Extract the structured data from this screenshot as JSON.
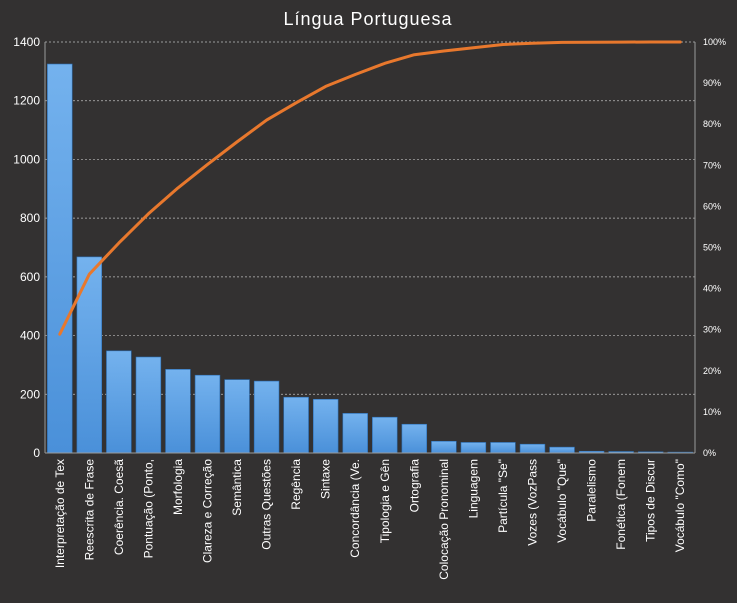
{
  "chart_data": {
    "type": "bar",
    "title": "Língua Portuguesa",
    "categories": [
      "Interpretação de Tex",
      "Reescrita de Frase",
      "Coerência. Coesã",
      "Pontuação (Ponto,",
      "Morfologia",
      "Clareza e Correção",
      "Semântica",
      "Outras Questões",
      "Regência",
      "Sintaxe",
      "Concordância (Ve.",
      "Tipologia e Gên",
      "Ortografia",
      "Colocação Pronominal",
      "Linguagem",
      "Partícula \"Se\"",
      "Vozes (VozPass",
      "Vocábulo \"Que\"",
      "Paralelismo",
      "Fonética (Fonem",
      "Tipos de Discur",
      "Vocábulo \"Como\""
    ],
    "series": [
      {
        "type": "bar",
        "values": [
          1325,
          668,
          348,
          327,
          285,
          265,
          250,
          245,
          190,
          183,
          135,
          122,
          98,
          40,
          36,
          36,
          30,
          20,
          6,
          5,
          4,
          3
        ]
      },
      {
        "type": "line",
        "axis": "right",
        "values": [
          28.9,
          43.5,
          51.1,
          58.2,
          64.5,
          70.2,
          75.7,
          81.0,
          85.2,
          89.2,
          92.1,
          94.8,
          96.9,
          97.8,
          98.6,
          99.4,
          99.7,
          99.9,
          99.95,
          99.98,
          99.99,
          100
        ]
      }
    ],
    "ylim": [
      0,
      1400
    ],
    "yticks": [
      0,
      200,
      400,
      600,
      800,
      1000,
      1200,
      1400
    ],
    "y2lim": [
      0,
      100
    ],
    "y2ticks": [
      "0%",
      "10%",
      "20%",
      "30%",
      "40%",
      "50%",
      "60%",
      "70%",
      "80%",
      "90%",
      "100%"
    ],
    "grid": true,
    "legend": "none",
    "colors": {
      "background": "#333131",
      "bar": "#4a90d9",
      "bar_light": "#74b2ee",
      "line": "#e8782d",
      "text": "#ffffff",
      "grid": "#bdbdbd"
    }
  }
}
